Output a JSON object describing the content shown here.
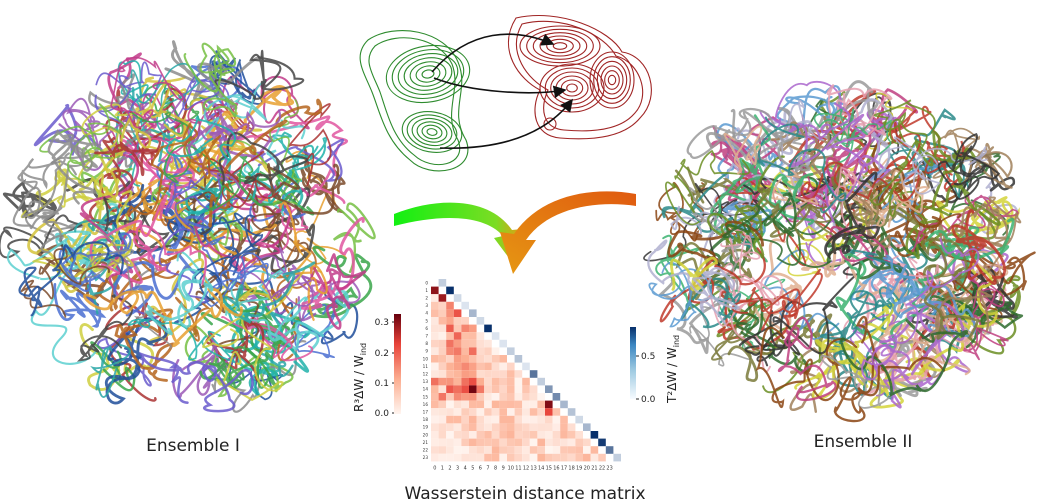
{
  "figure": {
    "ensemble_left_label": "Ensemble I",
    "ensemble_right_label": "Ensemble II",
    "matrix_title": "Wasserstein distance matrix",
    "left_colorbar": {
      "label": "R³ΔW / W",
      "label_sub": "ind",
      "ticks": [
        "0.3",
        "0.2",
        "0.1",
        "0.0"
      ],
      "color_low": "#fff5f0",
      "color_high": "#67000d"
    },
    "right_colorbar": {
      "label": "T²ΔW / W",
      "label_sub": "ind",
      "ticks": [
        "0.5",
        "0.0"
      ],
      "color_low": "#f7fbff",
      "color_high": "#08306b"
    },
    "matrix_tick_labels": [
      "0",
      "1",
      "2",
      "3",
      "4",
      "5",
      "6",
      "7",
      "8",
      "9",
      "10",
      "11",
      "12",
      "13",
      "14",
      "15",
      "16",
      "17",
      "18",
      "19",
      "20",
      "21",
      "22",
      "23"
    ],
    "colors": {
      "density_1": "#2e8b2e",
      "density_2": "#a02525",
      "arrow_green": "#22e022",
      "arrow_orange": "#e06410"
    }
  }
}
